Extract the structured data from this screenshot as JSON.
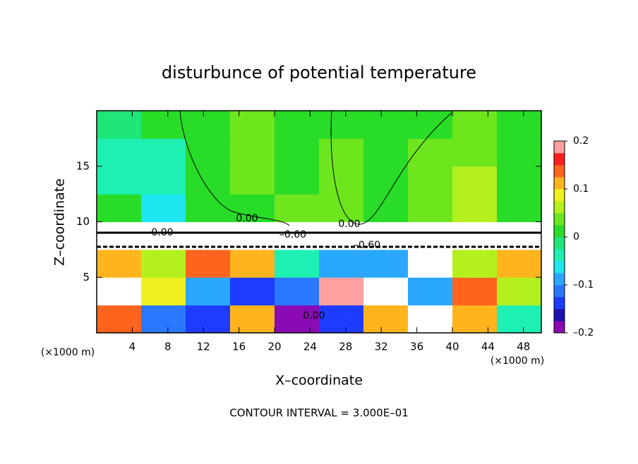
{
  "chart_data": {
    "type": "contour",
    "title": "disturbunce of potential temperature",
    "xlabel": "X–coordinate",
    "ylabel": "Z–coordinate",
    "x_unit": "(×1000 m)",
    "y_unit": "(×1000 m)",
    "annotation": "CONTOUR INTERVAL = 3.000E–01",
    "xlim": [
      0,
      50
    ],
    "ylim": [
      0,
      20
    ],
    "xticks": [
      4,
      8,
      12,
      16,
      20,
      24,
      28,
      32,
      36,
      40,
      44,
      48
    ],
    "yticks": [
      5,
      10,
      15
    ],
    "field": [
      [
        0.15,
        -0.12,
        -0.15,
        0.1,
        -0.18,
        -0.15,
        0.12,
        null,
        0.1,
        -0.05
      ],
      [
        null,
        0.08,
        -0.1,
        -0.15,
        -0.12,
        0.18,
        null,
        -0.1,
        0.15,
        0.05
      ],
      [
        0.12,
        0.05,
        0.15,
        0.1,
        -0.05,
        -0.08,
        -0.1,
        null,
        0.05,
        0.12
      ],
      [
        null,
        null,
        null,
        null,
        null,
        null,
        null,
        null,
        null,
        null
      ],
      [
        0.01,
        -0.06,
        0.0,
        0.02,
        0.03,
        0.03,
        0.0,
        0.03,
        0.07,
        0.02
      ],
      [
        -0.03,
        -0.05,
        0.0,
        0.03,
        0.02,
        0.04,
        0.01,
        0.04,
        0.06,
        0.02
      ],
      [
        -0.03,
        -0.03,
        0.01,
        0.04,
        0.02,
        0.03,
        0.02,
        0.03,
        0.04,
        0.02
      ],
      [
        -0.01,
        0.0,
        0.02,
        0.04,
        0.02,
        0.02,
        0.01,
        0.02,
        0.03,
        0.01
      ]
    ],
    "contour_labels": [
      "0.00",
      "0.00",
      "0.00",
      "–0.60",
      "–0.60",
      "0.00"
    ],
    "colorbar": {
      "lim": [
        -0.2,
        0.2
      ],
      "ticks": [
        {
          "value": -0.2,
          "label": "–0.2"
        },
        {
          "value": -0.1,
          "label": "–0.1"
        },
        0,
        0.1,
        0.2
      ],
      "colors": [
        "#8a0ab4",
        "#1e0fb4",
        "#1e3cff",
        "#2a78ff",
        "#2aa8ff",
        "#1ee6f0",
        "#1ef0b4",
        "#1ee678",
        "#28dc28",
        "#6ee61e",
        "#b4f01e",
        "#f0f01e",
        "#ffb41e",
        "#ff641e",
        "#ff1e1e",
        "#ffa0a0"
      ]
    }
  }
}
